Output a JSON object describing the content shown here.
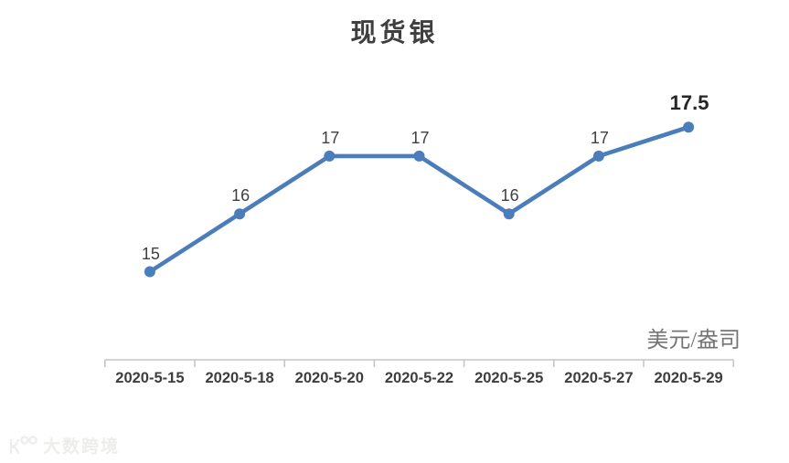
{
  "title": "现货银",
  "unit_label": "美元/盎司",
  "watermark": {
    "text": "大数跨境",
    "logo": "100"
  },
  "chart_data": {
    "type": "line",
    "title": "现货银",
    "categories": [
      "2020-5-15",
      "2020-5-18",
      "2020-5-20",
      "2020-5-22",
      "2020-5-25",
      "2020-5-27",
      "2020-5-29"
    ],
    "values": [
      15,
      16,
      17,
      17,
      16,
      17,
      17.5
    ],
    "data_labels": [
      "15",
      "16",
      "17",
      "17",
      "16",
      "17",
      "17.5"
    ],
    "unit": "美元/盎司",
    "series_name": "现货银",
    "series_color": "#4a7dba",
    "marker": "circle",
    "label_color": "#3f3f3f",
    "highlight_last_label": true,
    "axis_color": "#c6c6c6",
    "ylim": [
      14.5,
      18
    ],
    "grid": false,
    "legend": false,
    "y_axis_visible": false,
    "x_axis_visible": true
  }
}
